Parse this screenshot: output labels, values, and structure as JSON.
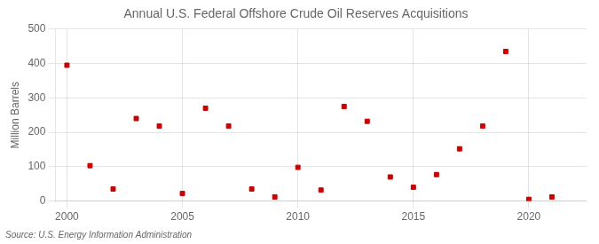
{
  "chart_data": {
    "type": "scatter",
    "title": "Annual U.S. Federal Offshore Crude Oil Reserves Acquisitions",
    "y_label": "Million Barrels",
    "annotations": [
      "Source: U.S. Energy Information Administration"
    ],
    "x": [
      2000,
      2001,
      2002,
      2003,
      2004,
      2005,
      2006,
      2007,
      2008,
      2009,
      2010,
      2011,
      2012,
      2013,
      2014,
      2015,
      2016,
      2017,
      2018,
      2019,
      2020,
      2021
    ],
    "values": [
      395,
      103,
      35,
      240,
      218,
      22,
      270,
      218,
      35,
      12,
      98,
      32,
      275,
      232,
      70,
      40,
      77,
      152,
      218,
      435,
      5,
      12
    ],
    "color": "#cc0000",
    "marker": "square",
    "xlim": [
      1999.5,
      2022.5
    ],
    "xticks": [
      2000,
      2005,
      2010,
      2015,
      2020
    ],
    "ylim": [
      0,
      500
    ],
    "yticks": [
      0,
      100,
      200,
      300,
      400,
      500
    ],
    "grid": true
  }
}
